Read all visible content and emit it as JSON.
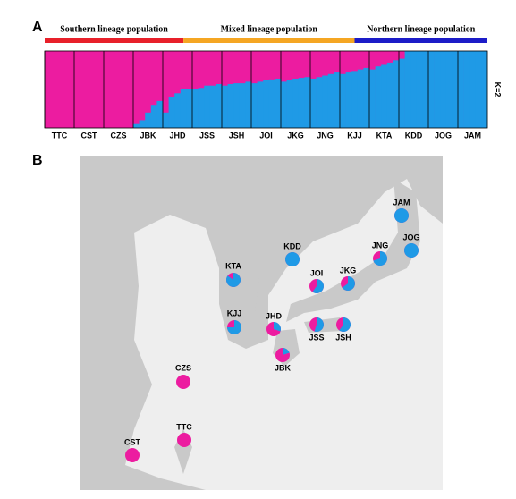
{
  "chart_data": [
    {
      "type": "structure",
      "panel": "A",
      "k_label": "K=2",
      "groups": [
        {
          "name": "Southern lineage population",
          "color": "#e8202a"
        },
        {
          "name": "Mixed lineage population",
          "color": "#f5a623"
        },
        {
          "name": "Northern lineage population",
          "color": "#1c1cc8"
        }
      ],
      "categories": [
        "TTC",
        "CST",
        "CZS",
        "JBK",
        "JHD",
        "JSS",
        "JSH",
        "JOI",
        "JKG",
        "JNG",
        "KJJ",
        "KTA",
        "KDD",
        "JOG",
        "JAM"
      ],
      "ylim": [
        0,
        1
      ],
      "background_color": "#ec1ca0",
      "series": [
        {
          "color": "#1f9ae6",
          "values": [
            [
              0,
              0,
              0,
              0,
              0
            ],
            [
              0,
              0,
              0,
              0,
              0
            ],
            [
              0,
              0,
              0,
              0,
              0
            ],
            [
              0.05,
              0.1,
              0.2,
              0.3,
              0.35
            ],
            [
              0.2,
              0.4,
              0.45,
              0.5,
              0.5
            ],
            [
              0.5,
              0.52,
              0.55,
              0.55,
              0.57
            ],
            [
              0.55,
              0.57,
              0.58,
              0.58,
              0.6
            ],
            [
              0.58,
              0.6,
              0.62,
              0.63,
              0.64
            ],
            [
              0.6,
              0.62,
              0.64,
              0.65,
              0.66
            ],
            [
              0.64,
              0.66,
              0.68,
              0.7,
              0.72
            ],
            [
              0.7,
              0.72,
              0.74,
              0.76,
              0.78
            ],
            [
              0.76,
              0.8,
              0.82,
              0.85,
              0.88
            ],
            [
              0.9,
              1,
              1,
              1,
              1
            ],
            [
              1,
              1,
              1,
              1,
              1
            ],
            [
              1,
              1,
              1,
              1,
              1
            ]
          ]
        }
      ]
    },
    {
      "type": "pie-map",
      "panel": "B",
      "colors": [
        "#1f9ae6",
        "#ec1ca0"
      ],
      "sites": [
        {
          "name": "JAM",
          "value": 1
        },
        {
          "name": "JOG",
          "value": 1
        },
        {
          "name": "JNG",
          "value": 0.7
        },
        {
          "name": "JKG",
          "value": 0.65
        },
        {
          "name": "JOI",
          "value": 0.6
        },
        {
          "name": "KDD",
          "value": 1
        },
        {
          "name": "KTA",
          "value": 0.85
        },
        {
          "name": "KJJ",
          "value": 0.75
        },
        {
          "name": "JHD",
          "value": 0.3
        },
        {
          "name": "JSS",
          "value": 0.55
        },
        {
          "name": "JSH",
          "value": 0.6
        },
        {
          "name": "JBK",
          "value": 0.2
        },
        {
          "name": "CZS",
          "value": 0
        },
        {
          "name": "TTC",
          "value": 0
        },
        {
          "name": "CST",
          "value": 0
        }
      ]
    }
  ]
}
